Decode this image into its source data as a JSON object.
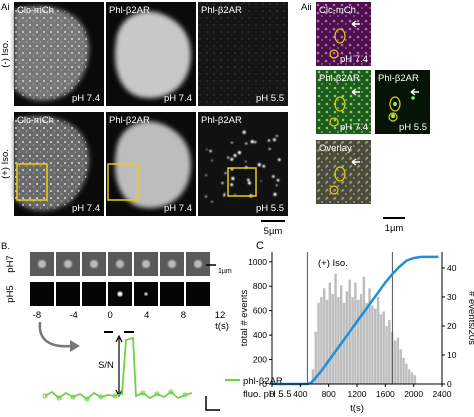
{
  "panel_a": {
    "i": {
      "label": "Ai",
      "rows": [
        {
          "label": "(-) Iso.",
          "tiles": [
            {
              "top": "Clc-mCh",
              "bottom": "pH 7.4"
            },
            {
              "top": "Phl-β2AR",
              "bottom": "pH 7.4"
            },
            {
              "top": "Phl-β2AR",
              "bottom": "pH 5.5"
            }
          ]
        },
        {
          "label": "(+) Iso.",
          "tiles": [
            {
              "top": "Clc-mCh",
              "bottom": "pH 7.4"
            },
            {
              "top": "Phl-β2AR",
              "bottom": "pH 7.4"
            },
            {
              "top": "Phl-β2AR",
              "bottom": "pH 5.5"
            }
          ]
        }
      ],
      "scale_bar": "5µm"
    },
    "ii": {
      "label": "Aii",
      "tiles": [
        {
          "top": "Clc-mCh",
          "bottom": "pH 7.4"
        },
        {
          "top": "Phl-β2AR",
          "bottom": "pH 7.4"
        },
        {
          "top": "Phl-β2AR",
          "bottom": "pH 5.5"
        },
        {
          "top": "Overlay"
        }
      ],
      "scale_bar": "1µm"
    }
  },
  "panel_b": {
    "label": "B.",
    "rows": [
      "pH7",
      "pH5"
    ],
    "scale_bar": "1µm",
    "time_labels": [
      "-8",
      "-4",
      "0",
      "4",
      "8",
      "12"
    ],
    "time_unit": "t(s)",
    "y_label": "S/N",
    "legend": [
      "phl-β2AR",
      "fluo. pH 5.5"
    ]
  },
  "chart_data": {
    "type": "combo",
    "panel_label": "C",
    "x_label": "t(s)",
    "y_label": "total # events",
    "y2_label": "# events/20s",
    "xlim": [
      0,
      2400
    ],
    "xticks": [
      0,
      400,
      800,
      1200,
      1600,
      2000,
      2400
    ],
    "ylim": [
      0,
      1080
    ],
    "yticks": [
      0,
      200,
      400,
      600,
      800,
      1000
    ],
    "y2lim": [
      0,
      45.5
    ],
    "y2ticks": [
      0,
      10,
      20,
      30,
      40
    ],
    "annotation": {
      "text": "(+) Iso.",
      "x": [
        500,
        1700
      ]
    },
    "histogram": {
      "axis": "y2",
      "color": "#bdbdbd",
      "bins": [
        560,
        600,
        640,
        680,
        720,
        760,
        800,
        840,
        880,
        920,
        960,
        1000,
        1040,
        1080,
        1120,
        1160,
        1200,
        1240,
        1280,
        1320,
        1360,
        1400,
        1440,
        1480,
        1520,
        1560,
        1600,
        1640,
        1680,
        1720,
        1760,
        1800,
        1840,
        1880,
        1920,
        1960,
        2000,
        2040
      ],
      "values": [
        5,
        18,
        28,
        30,
        33,
        29,
        35,
        31,
        38,
        30,
        34,
        28,
        32,
        36,
        30,
        35,
        29,
        31,
        37,
        28,
        33,
        27,
        26,
        30,
        24,
        25,
        20,
        22,
        18,
        15,
        16,
        12,
        9,
        7,
        5,
        4,
        3
      ]
    },
    "line": {
      "color": "#1f8fd8",
      "x": [
        0,
        500,
        550,
        600,
        700,
        800,
        900,
        1000,
        1100,
        1200,
        1300,
        1400,
        1500,
        1600,
        1700,
        1800,
        1900,
        2000,
        2100,
        2200,
        2300,
        2350
      ],
      "values": [
        0,
        0,
        10,
        40,
        110,
        190,
        270,
        350,
        430,
        510,
        590,
        670,
        750,
        830,
        900,
        960,
        1010,
        1030,
        1040,
        1040,
        1040,
        1040
      ]
    }
  }
}
